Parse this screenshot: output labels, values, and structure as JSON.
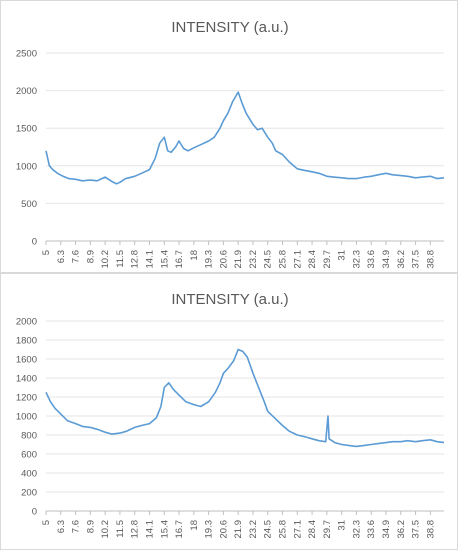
{
  "chart_data": [
    {
      "type": "line",
      "title": "INTENSITY (a.u.)",
      "xlabel": "",
      "ylabel": "",
      "x_ticks": [
        "5",
        "6.3",
        "7.6",
        "8.9",
        "10.2",
        "11.5",
        "12.8",
        "14.1",
        "15.4",
        "16.7",
        "18",
        "19.3",
        "20.6",
        "21.9",
        "23.2",
        "24.5",
        "25.8",
        "27.1",
        "28.4",
        "29.7",
        "31",
        "32.3",
        "33.6",
        "34.9",
        "36.2",
        "37.5",
        "38.8"
      ],
      "y_ticks": [
        "0",
        "500",
        "1000",
        "1500",
        "2000",
        "2500"
      ],
      "xlim": [
        5,
        40
      ],
      "ylim": [
        0,
        2500
      ],
      "grid": true,
      "line_color": "#5b9bd5",
      "series": [
        {
          "x": [
            5,
            5.3,
            5.6,
            6,
            6.5,
            7,
            7.6,
            8.2,
            8.9,
            9.5,
            10.2,
            10.8,
            11.2,
            11.5,
            12,
            12.8,
            13.4,
            14.1,
            14.6,
            15,
            15.4,
            15.7,
            16,
            16.4,
            16.7,
            17.1,
            17.5,
            18,
            18.6,
            19.3,
            19.8,
            20.3,
            20.6,
            21,
            21.4,
            21.9,
            22.2,
            22.6,
            23.2,
            23.6,
            24,
            24.5,
            24.9,
            25.2,
            25.8,
            26.4,
            27.1,
            27.7,
            28.4,
            29,
            29.7,
            30.3,
            31,
            31.6,
            32.3,
            33,
            33.6,
            34.2,
            34.9,
            35.5,
            36.2,
            36.8,
            37.5,
            38.1,
            38.8,
            39.4,
            40
          ],
          "y": [
            1200,
            1000,
            950,
            900,
            860,
            830,
            820,
            800,
            810,
            800,
            850,
            790,
            760,
            780,
            830,
            860,
            900,
            950,
            1100,
            1300,
            1380,
            1200,
            1180,
            1250,
            1330,
            1230,
            1200,
            1240,
            1280,
            1330,
            1380,
            1500,
            1600,
            1700,
            1850,
            1980,
            1850,
            1700,
            1550,
            1480,
            1500,
            1380,
            1300,
            1200,
            1150,
            1050,
            960,
            940,
            920,
            900,
            860,
            850,
            840,
            830,
            830,
            850,
            860,
            880,
            900,
            880,
            870,
            860,
            840,
            850,
            860,
            830,
            840
          ]
        }
      ]
    },
    {
      "type": "line",
      "title": "INTENSITY (a.u.)",
      "xlabel": "",
      "ylabel": "",
      "x_ticks": [
        "5",
        "6.3",
        "7.6",
        "8.9",
        "10.2",
        "11.5",
        "12.8",
        "14.1",
        "15.4",
        "16.7",
        "18",
        "19.3",
        "20.6",
        "21.9",
        "23.2",
        "24.5",
        "25.8",
        "27.1",
        "28.4",
        "29.7",
        "31",
        "32.3",
        "33.6",
        "34.9",
        "36.2",
        "37.5",
        "38.8"
      ],
      "y_ticks": [
        "0",
        "200",
        "400",
        "600",
        "800",
        "1000",
        "1200",
        "1400",
        "1600",
        "1800",
        "2000"
      ],
      "xlim": [
        5,
        40
      ],
      "ylim": [
        0,
        2000
      ],
      "grid": true,
      "line_color": "#5b9bd5",
      "series": [
        {
          "x": [
            5,
            5.4,
            5.8,
            6.3,
            6.9,
            7.6,
            8.2,
            8.9,
            9.5,
            10.2,
            10.8,
            11.5,
            12.1,
            12.8,
            13.4,
            14.1,
            14.7,
            15.1,
            15.4,
            15.8,
            16.2,
            16.7,
            17.3,
            18,
            18.6,
            19.3,
            19.9,
            20.3,
            20.6,
            21,
            21.5,
            21.9,
            22.3,
            22.7,
            23.2,
            23.7,
            24.2,
            24.5,
            25.1,
            25.8,
            26.4,
            27.1,
            27.8,
            28.4,
            29,
            29.6,
            29.8,
            29.9,
            30.4,
            31,
            31.6,
            32.3,
            33,
            33.6,
            34.2,
            34.9,
            35.5,
            36.2,
            36.8,
            37.5,
            38.1,
            38.8,
            39.4,
            40
          ],
          "y": [
            1250,
            1150,
            1080,
            1020,
            950,
            920,
            890,
            880,
            860,
            830,
            810,
            820,
            840,
            880,
            900,
            920,
            980,
            1100,
            1300,
            1350,
            1280,
            1220,
            1150,
            1120,
            1100,
            1150,
            1250,
            1350,
            1450,
            1500,
            1580,
            1700,
            1680,
            1620,
            1450,
            1300,
            1150,
            1050,
            980,
            900,
            840,
            800,
            780,
            760,
            740,
            730,
            1000,
            760,
            720,
            700,
            690,
            680,
            690,
            700,
            710,
            720,
            730,
            730,
            740,
            730,
            740,
            750,
            730,
            720
          ]
        }
      ]
    }
  ]
}
